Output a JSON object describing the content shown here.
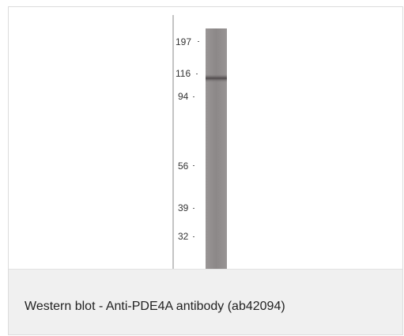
{
  "figure": {
    "markers": [
      "197",
      "116",
      "94",
      "56",
      "39",
      "32"
    ]
  },
  "caption": {
    "text": "Western blot - Anti-PDE4A antibody (ab42094)"
  },
  "colors": {
    "lane": "#8f8b8b",
    "band": "#5a5556",
    "caption_bg": "#f0f0f0"
  }
}
